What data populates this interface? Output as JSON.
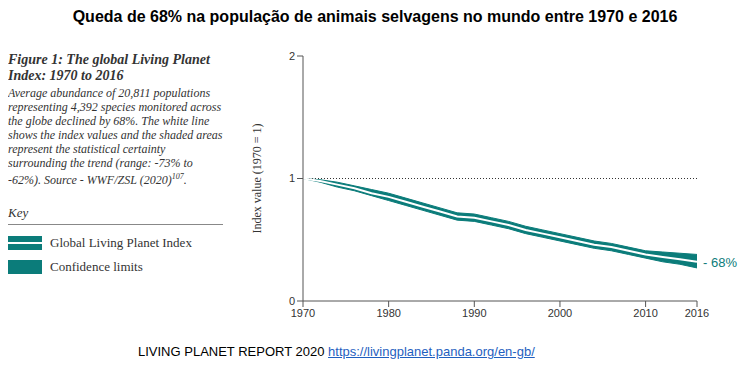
{
  "chart_data": {
    "type": "line",
    "title": "Queda de 68% na população de animais selvagens no mundo entre 1970 e 2016",
    "figure_title": "Figure 1: The global Living Planet Index: 1970 to 2016",
    "description": "Average abundance of 20,811 populations representing 4,392 species monitored across the globe declined by 68%. The white line shows the index values and the shaded areas represent the statistical certainty surrounding the trend (range: -73% to -62%). Source - WWF/ZSL (2020)",
    "description_ref": "107",
    "description_end": ".",
    "key_title": "Key",
    "source": "LIVING PLANET REPORT 2020",
    "source_url": "https://livingplanet.panda.org/en-gb/",
    "y_label": "Index value (1970 = 1)",
    "annotation": "- 68%",
    "reference_value": 1,
    "x": [
      1970,
      1972,
      1974,
      1976,
      1978,
      1980,
      1982,
      1984,
      1986,
      1988,
      1990,
      1992,
      1994,
      1996,
      1998,
      2000,
      2002,
      2004,
      2006,
      2008,
      2010,
      2012,
      2014,
      2016
    ],
    "series": [
      {
        "name": "Global Living Planet Index",
        "color": "#ffffff",
        "values": [
          1.0,
          0.98,
          0.95,
          0.92,
          0.88,
          0.85,
          0.81,
          0.77,
          0.73,
          0.69,
          0.68,
          0.65,
          0.62,
          0.58,
          0.55,
          0.52,
          0.49,
          0.46,
          0.44,
          0.41,
          0.38,
          0.36,
          0.34,
          0.32
        ]
      }
    ],
    "confidence_limits": {
      "name": "Confidence limits",
      "color": "#0b7c7a",
      "lower": [
        1.0,
        0.97,
        0.93,
        0.9,
        0.86,
        0.82,
        0.78,
        0.74,
        0.7,
        0.66,
        0.65,
        0.62,
        0.59,
        0.55,
        0.52,
        0.49,
        0.46,
        0.43,
        0.41,
        0.38,
        0.35,
        0.32,
        0.3,
        0.27
      ],
      "upper": [
        1.0,
        0.99,
        0.97,
        0.94,
        0.91,
        0.88,
        0.84,
        0.8,
        0.76,
        0.72,
        0.71,
        0.68,
        0.65,
        0.61,
        0.58,
        0.55,
        0.52,
        0.49,
        0.47,
        0.44,
        0.41,
        0.4,
        0.39,
        0.38
      ]
    },
    "xlim": [
      1970,
      2016
    ],
    "xticks": [
      1970,
      1980,
      1990,
      2000,
      2010,
      2016
    ],
    "ylim": [
      0,
      2
    ],
    "yticks": [
      0,
      1,
      2
    ],
    "grid": false
  }
}
